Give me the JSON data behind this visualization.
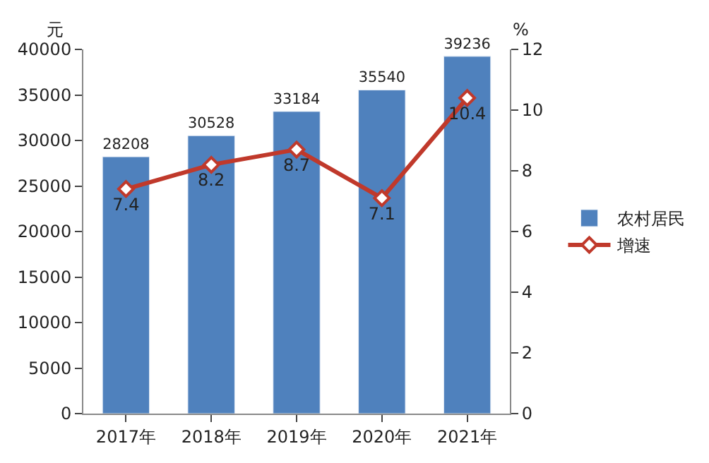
{
  "chart_data": {
    "type": "bar",
    "categories": [
      "2017年",
      "2018年",
      "2019年",
      "2020年",
      "2021年"
    ],
    "series": [
      {
        "name": "农村居民",
        "color": "#4f81bd",
        "values": [
          28208,
          30528,
          33184,
          35540,
          39236
        ]
      },
      {
        "name": "增速",
        "type": "line",
        "axis": "y2",
        "color": "#c0392b",
        "values": [
          7.4,
          8.2,
          8.7,
          7.1,
          10.4
        ],
        "marker": "diamond",
        "line_style": "solid"
      }
    ],
    "ylabel": "元",
    "y2label": "%",
    "ylim": [
      0,
      40000
    ],
    "yticks": [
      0,
      5000,
      10000,
      15000,
      20000,
      25000,
      30000,
      35000,
      40000
    ],
    "y2lim": [
      0,
      12
    ],
    "y2ticks": [
      0,
      2,
      4,
      6,
      8,
      10,
      12
    ],
    "data_labels": true,
    "legend": "right"
  }
}
